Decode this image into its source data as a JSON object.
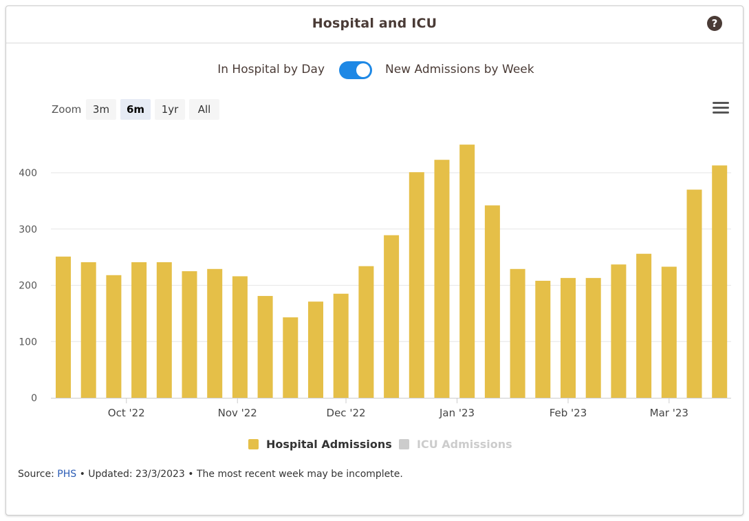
{
  "header": {
    "title": "Hospital and ICU",
    "help_icon": "question-circle-icon",
    "help_symbol": "?"
  },
  "toggle": {
    "left_label": "In Hospital by Day",
    "right_label": "New Admissions by Week",
    "state": "on",
    "color": "#1e88e5"
  },
  "zoom": {
    "label": "Zoom",
    "buttons": [
      {
        "label": "3m",
        "active": false
      },
      {
        "label": "6m",
        "active": true
      },
      {
        "label": "1yr",
        "active": false
      },
      {
        "label": "All",
        "active": false
      }
    ]
  },
  "menu_icon": "hamburger-menu-icon",
  "legend": [
    {
      "label": "Hospital Admissions",
      "color": "#e5bf48",
      "active": true
    },
    {
      "label": "ICU Admissions",
      "color": "#cccccc",
      "active": false
    }
  ],
  "footer": {
    "source_prefix": "Source: ",
    "source_link": "PHS",
    "updated": " • Updated: 23/3/2023 • The most recent week may be incomplete."
  },
  "chart_data": {
    "type": "bar",
    "title": "Hospital and ICU",
    "xlabel": "",
    "ylabel": "",
    "ylim": [
      0,
      450
    ],
    "yticks": [
      0,
      100,
      200,
      300,
      400
    ],
    "grid": true,
    "legend_position": "bottom",
    "x_tick_labels": [
      {
        "label": "Oct '22",
        "position": 2.5
      },
      {
        "label": "Nov '22",
        "position": 6.9
      },
      {
        "label": "Dec '22",
        "position": 11.2
      },
      {
        "label": "Jan '23",
        "position": 15.6
      },
      {
        "label": "Feb '23",
        "position": 20.0
      },
      {
        "label": "Mar '23",
        "position": 24.0
      }
    ],
    "series": [
      {
        "name": "Hospital Admissions",
        "color": "#e5bf48",
        "values": [
          251,
          241,
          218,
          241,
          241,
          225,
          229,
          216,
          181,
          143,
          171,
          185,
          234,
          289,
          401,
          423,
          450,
          342,
          229,
          208,
          213,
          213,
          237,
          256,
          233,
          370,
          413
        ]
      }
    ]
  }
}
